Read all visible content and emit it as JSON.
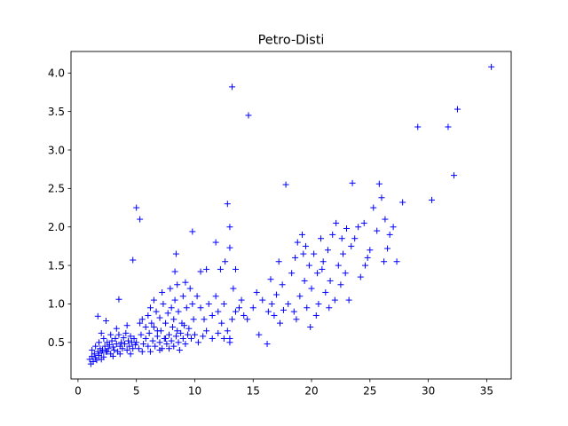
{
  "chart_data": {
    "type": "scatter",
    "title": "Petro-Disti",
    "xlabel": "",
    "ylabel": "",
    "xlim": [
      -0.6,
      37.1
    ],
    "ylim": [
      0.025,
      4.28
    ],
    "xticks": [
      0,
      5,
      10,
      15,
      20,
      25,
      30,
      35
    ],
    "yticks": [
      0.5,
      1.0,
      1.5,
      2.0,
      2.5,
      3.0,
      3.5,
      4.0
    ],
    "xtick_labels": [
      "0",
      "5",
      "10",
      "15",
      "20",
      "25",
      "30",
      "35"
    ],
    "ytick_labels": [
      "0.5",
      "1.0",
      "1.5",
      "2.0",
      "2.5",
      "3.0",
      "3.5",
      "4.0"
    ],
    "marker": "+",
    "color": "#0000ff",
    "grid": false,
    "series": [
      {
        "points": [
          [
            1.0,
            0.28
          ],
          [
            1.1,
            0.22
          ],
          [
            1.2,
            0.32
          ],
          [
            1.3,
            0.25
          ],
          [
            1.4,
            0.35
          ],
          [
            1.5,
            0.3
          ],
          [
            1.6,
            0.27
          ],
          [
            1.7,
            0.38
          ],
          [
            1.8,
            0.33
          ],
          [
            1.9,
            0.42
          ],
          [
            2.0,
            0.36
          ],
          [
            2.1,
            0.4
          ],
          [
            2.2,
            0.31
          ],
          [
            2.3,
            0.45
          ],
          [
            2.4,
            0.38
          ],
          [
            2.5,
            0.5
          ],
          [
            2.6,
            0.42
          ],
          [
            2.7,
            0.47
          ],
          [
            2.8,
            0.35
          ],
          [
            2.9,
            0.52
          ],
          [
            3.0,
            0.44
          ],
          [
            3.1,
            0.4
          ],
          [
            3.2,
            0.55
          ],
          [
            3.3,
            0.48
          ],
          [
            3.4,
            0.38
          ],
          [
            3.5,
            0.6
          ],
          [
            3.6,
            0.45
          ],
          [
            3.7,
            0.5
          ],
          [
            3.8,
            0.42
          ],
          [
            3.9,
            0.56
          ],
          [
            4.0,
            0.48
          ],
          [
            4.1,
            0.62
          ],
          [
            4.2,
            0.4
          ],
          [
            4.3,
            0.52
          ],
          [
            4.4,
            0.45
          ],
          [
            4.5,
            0.58
          ],
          [
            4.6,
            0.5
          ],
          [
            4.7,
            0.42
          ],
          [
            4.8,
            0.55
          ],
          [
            4.9,
            0.47
          ],
          [
            1.5,
            0.45
          ],
          [
            1.8,
            0.5
          ],
          [
            2.0,
            0.62
          ],
          [
            2.2,
            0.55
          ],
          [
            2.5,
            0.38
          ],
          [
            2.8,
            0.6
          ],
          [
            3.0,
            0.32
          ],
          [
            3.3,
            0.68
          ],
          [
            3.6,
            0.35
          ],
          [
            1.7,
            0.84
          ],
          [
            2.4,
            0.78
          ],
          [
            3.5,
            1.06
          ],
          [
            4.2,
            0.72
          ],
          [
            4.5,
            0.35
          ],
          [
            2.0,
            0.28
          ],
          [
            1.2,
            0.4
          ],
          [
            5.0,
            0.5
          ],
          [
            5.2,
            0.42
          ],
          [
            5.4,
            0.6
          ],
          [
            5.5,
            0.38
          ],
          [
            5.6,
            0.48
          ],
          [
            5.8,
            0.55
          ],
          [
            6.0,
            0.45
          ],
          [
            6.1,
            0.62
          ],
          [
            6.2,
            0.38
          ],
          [
            6.4,
            0.52
          ],
          [
            6.5,
            0.7
          ],
          [
            6.6,
            0.45
          ],
          [
            6.8,
            0.58
          ],
          [
            7.0,
            0.5
          ],
          [
            7.1,
            0.65
          ],
          [
            7.2,
            0.42
          ],
          [
            7.4,
            0.55
          ],
          [
            7.5,
            0.75
          ],
          [
            7.6,
            0.48
          ],
          [
            7.8,
            0.6
          ],
          [
            8.0,
            0.52
          ],
          [
            8.1,
            0.7
          ],
          [
            8.2,
            0.45
          ],
          [
            8.4,
            0.58
          ],
          [
            8.5,
            0.65
          ],
          [
            8.6,
            0.5
          ],
          [
            8.8,
            0.62
          ],
          [
            9.0,
            0.55
          ],
          [
            9.1,
            0.72
          ],
          [
            9.2,
            0.48
          ],
          [
            9.4,
            0.6
          ],
          [
            9.5,
            0.68
          ],
          [
            5.5,
            0.8
          ],
          [
            6.0,
            0.85
          ],
          [
            6.3,
            0.75
          ],
          [
            6.7,
            0.9
          ],
          [
            7.0,
            0.82
          ],
          [
            7.3,
            1.0
          ],
          [
            7.7,
            0.88
          ],
          [
            8.0,
            0.95
          ],
          [
            8.3,
            1.05
          ],
          [
            8.6,
            0.9
          ],
          [
            9.0,
            1.1
          ],
          [
            9.3,
            0.95
          ],
          [
            9.6,
            1.2
          ],
          [
            9.8,
            1.0
          ],
          [
            6.5,
            1.05
          ],
          [
            7.2,
            1.15
          ],
          [
            7.9,
            1.2
          ],
          [
            8.5,
            1.25
          ],
          [
            9.2,
            1.28
          ],
          [
            6.8,
            0.65
          ],
          [
            7.5,
            0.55
          ],
          [
            8.2,
            0.8
          ],
          [
            8.9,
            0.75
          ],
          [
            5.8,
            0.7
          ],
          [
            6.2,
            0.95
          ],
          [
            7.0,
            0.4
          ],
          [
            7.8,
            0.42
          ],
          [
            8.7,
            0.4
          ],
          [
            9.7,
            0.55
          ],
          [
            5.3,
            0.75
          ],
          [
            10.0,
            0.6
          ],
          [
            9.9,
            0.8
          ],
          [
            4.7,
            1.57
          ],
          [
            5.0,
            2.25
          ],
          [
            5.3,
            2.1
          ],
          [
            8.3,
            1.42
          ],
          [
            8.4,
            1.65
          ],
          [
            9.8,
            1.94
          ],
          [
            10.5,
            1.42
          ],
          [
            11.0,
            1.45
          ],
          [
            11.8,
            1.8
          ],
          [
            12.2,
            1.45
          ],
          [
            12.6,
            1.55
          ],
          [
            12.8,
            2.3
          ],
          [
            13.0,
            2.0
          ],
          [
            13.0,
            1.73
          ],
          [
            13.3,
            1.2
          ],
          [
            13.5,
            1.45
          ],
          [
            10.2,
            1.1
          ],
          [
            10.5,
            0.95
          ],
          [
            10.8,
            0.8
          ],
          [
            11.2,
            1.0
          ],
          [
            11.5,
            0.85
          ],
          [
            11.8,
            1.1
          ],
          [
            12.0,
            0.9
          ],
          [
            12.3,
            0.75
          ],
          [
            12.5,
            1.0
          ],
          [
            12.8,
            0.65
          ],
          [
            13.0,
            0.55
          ],
          [
            13.2,
            0.8
          ],
          [
            13.5,
            0.9
          ],
          [
            13.8,
            0.95
          ],
          [
            14.0,
            1.05
          ],
          [
            14.2,
            0.85
          ],
          [
            14.5,
            0.8
          ],
          [
            10.3,
            0.5
          ],
          [
            10.7,
            0.58
          ],
          [
            11.0,
            0.65
          ],
          [
            11.5,
            0.55
          ],
          [
            12.0,
            0.62
          ],
          [
            12.5,
            0.55
          ],
          [
            13.0,
            0.5
          ],
          [
            13.2,
            3.82
          ],
          [
            14.6,
            3.45
          ],
          [
            15.3,
            1.15
          ],
          [
            15.5,
            0.6
          ],
          [
            16.2,
            0.48
          ],
          [
            16.5,
            1.32
          ],
          [
            16.8,
            0.85
          ],
          [
            17.0,
            1.12
          ],
          [
            17.2,
            1.55
          ],
          [
            17.5,
            1.25
          ],
          [
            17.6,
            0.92
          ],
          [
            17.8,
            2.55
          ],
          [
            18.0,
            1.0
          ],
          [
            18.3,
            1.4
          ],
          [
            18.5,
            0.9
          ],
          [
            18.6,
            1.6
          ],
          [
            18.8,
            1.8
          ],
          [
            19.0,
            1.1
          ],
          [
            19.2,
            1.9
          ],
          [
            19.4,
            1.3
          ],
          [
            19.5,
            1.75
          ],
          [
            19.6,
            0.95
          ],
          [
            19.8,
            1.5
          ],
          [
            20.0,
            1.2
          ],
          [
            20.2,
            1.65
          ],
          [
            20.4,
            0.85
          ],
          [
            20.5,
            1.4
          ],
          [
            20.6,
            1.0
          ],
          [
            20.8,
            1.85
          ],
          [
            21.0,
            1.55
          ],
          [
            21.2,
            1.15
          ],
          [
            21.4,
            1.7
          ],
          [
            21.6,
            1.3
          ],
          [
            21.8,
            1.9
          ],
          [
            22.0,
            1.05
          ],
          [
            22.1,
            2.05
          ],
          [
            22.3,
            1.5
          ],
          [
            22.5,
            1.25
          ],
          [
            22.7,
            1.65
          ],
          [
            22.9,
            1.4
          ],
          [
            23.0,
            1.98
          ],
          [
            23.2,
            1.05
          ],
          [
            23.4,
            1.75
          ],
          [
            23.5,
            2.57
          ],
          [
            23.7,
            1.85
          ],
          [
            24.0,
            2.0
          ],
          [
            24.2,
            1.35
          ],
          [
            24.5,
            2.05
          ],
          [
            24.8,
            1.6
          ],
          [
            25.0,
            1.7
          ],
          [
            25.3,
            2.25
          ],
          [
            25.6,
            1.95
          ],
          [
            25.8,
            2.56
          ],
          [
            26.0,
            2.38
          ],
          [
            26.2,
            1.55
          ],
          [
            26.3,
            2.1
          ],
          [
            26.5,
            1.72
          ],
          [
            26.7,
            1.9
          ],
          [
            27.0,
            2.0
          ],
          [
            27.3,
            1.55
          ],
          [
            27.8,
            2.32
          ],
          [
            29.1,
            3.3
          ],
          [
            30.3,
            2.35
          ],
          [
            31.7,
            3.3
          ],
          [
            32.2,
            2.67
          ],
          [
            32.5,
            3.53
          ],
          [
            35.4,
            4.08
          ],
          [
            16.3,
            0.9
          ],
          [
            17.3,
            0.75
          ],
          [
            18.7,
            0.8
          ],
          [
            19.9,
            0.7
          ],
          [
            21.5,
            0.95
          ],
          [
            15.0,
            0.95
          ],
          [
            15.8,
            1.05
          ],
          [
            16.6,
            1.0
          ],
          [
            19.3,
            1.65
          ],
          [
            20.9,
            1.45
          ],
          [
            22.6,
            1.85
          ],
          [
            24.6,
            1.5
          ]
        ]
      }
    ]
  }
}
